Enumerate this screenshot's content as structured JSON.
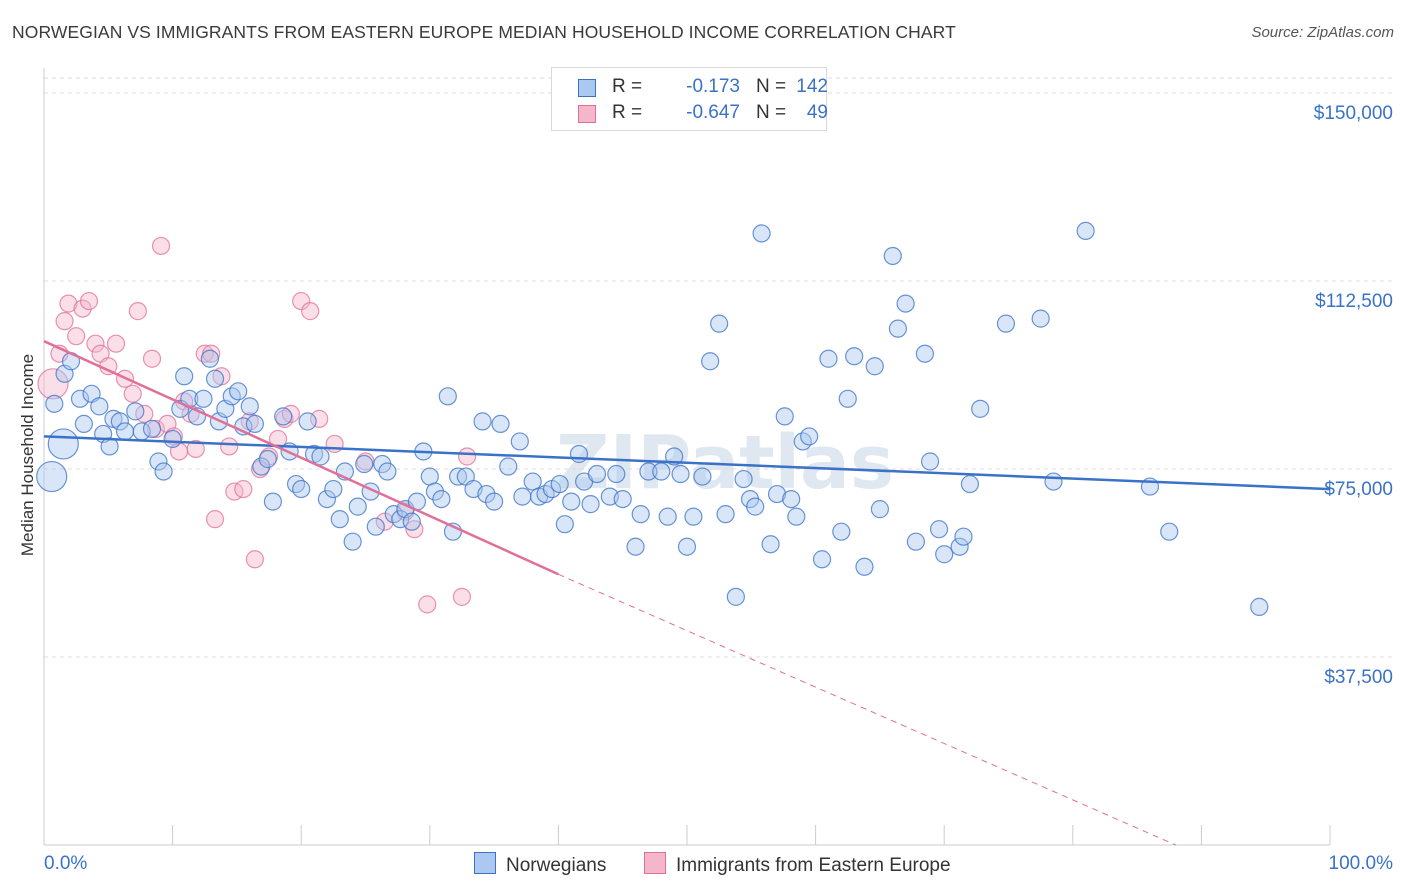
{
  "title": "NORWEGIAN VS IMMIGRANTS FROM EASTERN EUROPE MEDIAN HOUSEHOLD INCOME CORRELATION CHART",
  "source": "Source: ZipAtlas.com",
  "watermark": "ZIPatlas",
  "colors": {
    "blue": "#3a72c8",
    "blue_fill": "#aac8f0",
    "pink": "#e07098",
    "pink_fill": "#f4b6cb",
    "grid": "#dcdcdc",
    "axis_text": "#3a72c8"
  },
  "legend_top": [
    {
      "r_label": "R =",
      "r_value": "-0.173",
      "n_label": "N =",
      "n_value": "142"
    },
    {
      "r_label": "R =",
      "r_value": "-0.647",
      "n_label": "N =",
      "n_value": "49"
    }
  ],
  "legend_bottom": [
    "Norwegians",
    "Immigrants from Eastern Europe"
  ],
  "chart_data": {
    "type": "scatter",
    "title": "NORWEGIAN VS IMMIGRANTS FROM EASTERN EUROPE MEDIAN HOUSEHOLD INCOME CORRELATION CHART",
    "xlabel": "",
    "ylabel": "Median Household Income",
    "xlim": [
      0,
      100
    ],
    "ylim": [
      0,
      153000
    ],
    "x_tick_labels": [
      "0.0%",
      "100.0%"
    ],
    "y_ticks": [
      37500,
      75000,
      112500,
      150000
    ],
    "y_tick_labels": [
      "$37,500",
      "$75,000",
      "$112,500",
      "$150,000"
    ],
    "grid": true,
    "legend_position": "top-center",
    "series": [
      {
        "name": "Norwegians",
        "color": "#3a72c8",
        "trend": {
          "x": [
            0,
            100
          ],
          "y": [
            81500,
            71000
          ]
        },
        "points": [
          [
            0.8,
            88000
          ],
          [
            1.6,
            94000
          ],
          [
            2.1,
            96500
          ],
          [
            2.8,
            89000
          ],
          [
            3.1,
            84000
          ],
          [
            3.7,
            90000
          ],
          [
            4.3,
            87500
          ],
          [
            4.6,
            82000
          ],
          [
            5.1,
            79500
          ],
          [
            5.4,
            85000
          ],
          [
            5.9,
            84500
          ],
          [
            6.3,
            82500
          ],
          [
            7.1,
            86500
          ],
          [
            7.6,
            82500
          ],
          [
            8.4,
            83000
          ],
          [
            8.9,
            76500
          ],
          [
            9.3,
            74500
          ],
          [
            10.0,
            81000
          ],
          [
            10.6,
            87000
          ],
          [
            10.9,
            93500
          ],
          [
            11.3,
            89000
          ],
          [
            11.9,
            85500
          ],
          [
            12.4,
            89000
          ],
          [
            12.9,
            97000
          ],
          [
            13.3,
            93000
          ],
          [
            13.6,
            84500
          ],
          [
            14.1,
            87000
          ],
          [
            14.6,
            89500
          ],
          [
            15.1,
            90500
          ],
          [
            15.5,
            83500
          ],
          [
            16.0,
            87500
          ],
          [
            16.4,
            84000
          ],
          [
            16.9,
            75500
          ],
          [
            17.4,
            77000
          ],
          [
            17.8,
            68500
          ],
          [
            18.6,
            85500
          ],
          [
            19.1,
            78500
          ],
          [
            19.6,
            72000
          ],
          [
            20.0,
            71000
          ],
          [
            20.5,
            84500
          ],
          [
            21.0,
            78000
          ],
          [
            21.5,
            77500
          ],
          [
            22.0,
            69000
          ],
          [
            22.5,
            71000
          ],
          [
            23.0,
            65000
          ],
          [
            23.4,
            74500
          ],
          [
            24.0,
            60500
          ],
          [
            24.4,
            67500
          ],
          [
            24.9,
            76000
          ],
          [
            25.4,
            70500
          ],
          [
            25.8,
            63500
          ],
          [
            26.3,
            76000
          ],
          [
            26.7,
            74500
          ],
          [
            27.2,
            66000
          ],
          [
            27.7,
            65000
          ],
          [
            28.1,
            67000
          ],
          [
            28.6,
            64500
          ],
          [
            29.0,
            68500
          ],
          [
            29.5,
            78500
          ],
          [
            30.0,
            73500
          ],
          [
            30.4,
            70500
          ],
          [
            30.9,
            69000
          ],
          [
            31.4,
            89500
          ],
          [
            31.8,
            62500
          ],
          [
            32.2,
            73500
          ],
          [
            32.8,
            73500
          ],
          [
            33.4,
            71000
          ],
          [
            34.1,
            84500
          ],
          [
            34.4,
            70000
          ],
          [
            35.0,
            68500
          ],
          [
            35.5,
            84000
          ],
          [
            36.1,
            75500
          ],
          [
            37.0,
            80500
          ],
          [
            37.2,
            69500
          ],
          [
            38.0,
            72500
          ],
          [
            38.5,
            69500
          ],
          [
            39.0,
            70000
          ],
          [
            39.5,
            71000
          ],
          [
            40.1,
            72000
          ],
          [
            40.5,
            64000
          ],
          [
            41.0,
            68500
          ],
          [
            41.6,
            78000
          ],
          [
            42.0,
            72500
          ],
          [
            42.5,
            68000
          ],
          [
            43.0,
            74000
          ],
          [
            44.0,
            69500
          ],
          [
            44.5,
            74000
          ],
          [
            45.0,
            69000
          ],
          [
            46.0,
            59500
          ],
          [
            46.4,
            66000
          ],
          [
            47.0,
            74500
          ],
          [
            48.0,
            74500
          ],
          [
            48.5,
            65500
          ],
          [
            49.0,
            77500
          ],
          [
            49.5,
            74000
          ],
          [
            50.0,
            59500
          ],
          [
            50.5,
            65500
          ],
          [
            51.2,
            73500
          ],
          [
            51.8,
            96500
          ],
          [
            52.5,
            104000
          ],
          [
            53.0,
            66000
          ],
          [
            53.8,
            49500
          ],
          [
            54.4,
            73000
          ],
          [
            54.9,
            69000
          ],
          [
            55.3,
            67500
          ],
          [
            55.8,
            122000
          ],
          [
            56.5,
            60000
          ],
          [
            57.0,
            70000
          ],
          [
            57.6,
            85500
          ],
          [
            58.1,
            69000
          ],
          [
            58.5,
            65500
          ],
          [
            59.0,
            80500
          ],
          [
            59.5,
            81500
          ],
          [
            60.5,
            57000
          ],
          [
            61.0,
            97000
          ],
          [
            62.0,
            62500
          ],
          [
            62.5,
            89000
          ],
          [
            63.0,
            97500
          ],
          [
            63.8,
            55500
          ],
          [
            64.6,
            95500
          ],
          [
            65.0,
            67000
          ],
          [
            66.0,
            117500
          ],
          [
            66.4,
            103000
          ],
          [
            67.0,
            108000
          ],
          [
            67.8,
            60500
          ],
          [
            68.5,
            98000
          ],
          [
            68.9,
            76500
          ],
          [
            69.6,
            63000
          ],
          [
            70.0,
            58000
          ],
          [
            71.2,
            59500
          ],
          [
            71.5,
            61500
          ],
          [
            72.0,
            72000
          ],
          [
            72.8,
            87000
          ],
          [
            74.8,
            104000
          ],
          [
            77.5,
            105000
          ],
          [
            78.5,
            72500
          ],
          [
            81.0,
            122500
          ],
          [
            86.0,
            71500
          ],
          [
            87.5,
            62500
          ],
          [
            94.5,
            47500
          ],
          [
            0.6,
            73500
          ],
          [
            1.5,
            80000
          ]
        ]
      },
      {
        "name": "Immigrants from Eastern Europe",
        "color": "#e07098",
        "trend": {
          "x": [
            0,
            40
          ],
          "y": [
            100500,
            54000
          ],
          "dashed_to": [
            100,
            -13500
          ]
        },
        "points": [
          [
            0.7,
            92000
          ],
          [
            1.2,
            98000
          ],
          [
            1.6,
            104500
          ],
          [
            1.9,
            108000
          ],
          [
            2.5,
            101500
          ],
          [
            3.0,
            107000
          ],
          [
            3.5,
            108500
          ],
          [
            4.0,
            100000
          ],
          [
            4.4,
            98000
          ],
          [
            5.0,
            95500
          ],
          [
            5.6,
            100000
          ],
          [
            6.3,
            93000
          ],
          [
            6.9,
            90000
          ],
          [
            7.3,
            106500
          ],
          [
            7.8,
            86000
          ],
          [
            8.4,
            97000
          ],
          [
            8.7,
            83000
          ],
          [
            9.1,
            119500
          ],
          [
            9.6,
            84000
          ],
          [
            10.1,
            81500
          ],
          [
            10.5,
            78500
          ],
          [
            10.9,
            88500
          ],
          [
            11.4,
            86000
          ],
          [
            11.8,
            79000
          ],
          [
            12.5,
            98000
          ],
          [
            13.0,
            98000
          ],
          [
            13.3,
            65000
          ],
          [
            13.8,
            93500
          ],
          [
            14.4,
            79500
          ],
          [
            14.8,
            70500
          ],
          [
            15.5,
            71000
          ],
          [
            16.0,
            84500
          ],
          [
            16.4,
            57000
          ],
          [
            16.8,
            75000
          ],
          [
            17.5,
            77500
          ],
          [
            18.2,
            81000
          ],
          [
            18.7,
            85000
          ],
          [
            19.2,
            86000
          ],
          [
            20.0,
            108500
          ],
          [
            20.7,
            106500
          ],
          [
            21.4,
            85000
          ],
          [
            22.6,
            80000
          ],
          [
            25.0,
            76500
          ],
          [
            26.5,
            64500
          ],
          [
            28.1,
            66500
          ],
          [
            28.8,
            63000
          ],
          [
            29.8,
            48000
          ],
          [
            32.5,
            49500
          ],
          [
            32.9,
            77500
          ]
        ]
      }
    ]
  }
}
